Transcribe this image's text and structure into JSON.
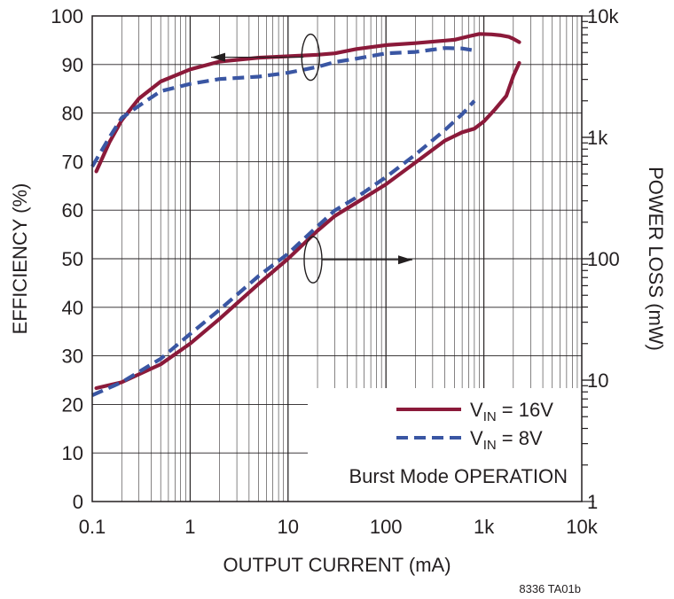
{
  "chart_data": {
    "type": "line",
    "xlabel": "OUTPUT CURRENT (mA)",
    "ylabel_left": "EFFICIENCY (%)",
    "ylabel_right": "POWER LOSS (mW)",
    "x_scale": "log",
    "xlim": [
      0.1,
      10000
    ],
    "ylim_left": [
      0,
      100
    ],
    "ylim_right": [
      1,
      10000
    ],
    "y_right_scale": "log",
    "grid": true,
    "x_tick_labels": [
      {
        "value": 0.1,
        "label": "0.1"
      },
      {
        "value": 1,
        "label": "1"
      },
      {
        "value": 10,
        "label": "10"
      },
      {
        "value": 100,
        "label": "100"
      },
      {
        "value": 1000,
        "label": "1k"
      },
      {
        "value": 10000,
        "label": "10k"
      }
    ],
    "y_left_tick_labels": [
      {
        "value": 0,
        "label": "0"
      },
      {
        "value": 10,
        "label": "10"
      },
      {
        "value": 20,
        "label": "20"
      },
      {
        "value": 30,
        "label": "30"
      },
      {
        "value": 40,
        "label": "40"
      },
      {
        "value": 50,
        "label": "50"
      },
      {
        "value": 60,
        "label": "60"
      },
      {
        "value": 70,
        "label": "70"
      },
      {
        "value": 80,
        "label": "80"
      },
      {
        "value": 90,
        "label": "90"
      },
      {
        "value": 100,
        "label": "100"
      }
    ],
    "y_right_tick_labels": [
      {
        "value": 1,
        "label": "1"
      },
      {
        "value": 10,
        "label": "10"
      },
      {
        "value": 100,
        "label": "100"
      },
      {
        "value": 1000,
        "label": "1k"
      },
      {
        "value": 10000,
        "label": "10k"
      }
    ],
    "legend": {
      "placement": "bottom-right",
      "entries": [
        {
          "series": "vin16",
          "prefix": "V",
          "subscript": "IN",
          "suffix": " = 16V",
          "color": "#8b1a3a",
          "dash": "solid"
        },
        {
          "series": "vin8",
          "prefix": "V",
          "subscript": "IN",
          "suffix": " = 8V",
          "color": "#3a56a3",
          "dash": "dashed"
        }
      ],
      "note": "Burst Mode OPERATION"
    },
    "series": [
      {
        "id": "vin16_eff",
        "color": "#8b1a3a",
        "dash": "solid",
        "axis": "left",
        "points": [
          [
            0.11,
            68
          ],
          [
            0.15,
            74
          ],
          [
            0.2,
            78.5
          ],
          [
            0.3,
            83
          ],
          [
            0.5,
            86.5
          ],
          [
            1,
            89
          ],
          [
            2,
            90.6
          ],
          [
            5,
            91.4
          ],
          [
            10,
            91.7
          ],
          [
            20,
            92
          ],
          [
            30,
            92.3
          ],
          [
            50,
            93.2
          ],
          [
            100,
            94
          ],
          [
            200,
            94.4
          ],
          [
            500,
            95.1
          ],
          [
            700,
            95.8
          ],
          [
            900,
            96.3
          ],
          [
            1200,
            96.2
          ],
          [
            1500,
            96
          ],
          [
            1800,
            95.7
          ],
          [
            2000,
            95.3
          ],
          [
            2300,
            94.6
          ]
        ]
      },
      {
        "id": "vin8_eff",
        "color": "#3a56a3",
        "dash": "dashed",
        "axis": "left",
        "points": [
          [
            0.1,
            69
          ],
          [
            0.15,
            75
          ],
          [
            0.2,
            79
          ],
          [
            0.3,
            81.5
          ],
          [
            0.5,
            84.5
          ],
          [
            1,
            86
          ],
          [
            2,
            87
          ],
          [
            5,
            87.5
          ],
          [
            10,
            88.3
          ],
          [
            20,
            89.5
          ],
          [
            30,
            90.5
          ],
          [
            50,
            91.2
          ],
          [
            100,
            92.3
          ],
          [
            200,
            92.6
          ],
          [
            400,
            93.4
          ],
          [
            600,
            93.3
          ],
          [
            750,
            93
          ]
        ]
      },
      {
        "id": "vin16_loss",
        "color": "#8b1a3a",
        "dash": "solid",
        "axis": "right",
        "points": [
          [
            0.11,
            8.6
          ],
          [
            0.2,
            9.6
          ],
          [
            0.5,
            13.5
          ],
          [
            1,
            20
          ],
          [
            2,
            32
          ],
          [
            5,
            62
          ],
          [
            10,
            100
          ],
          [
            20,
            170
          ],
          [
            30,
            225
          ],
          [
            50,
            290
          ],
          [
            100,
            410
          ],
          [
            200,
            620
          ],
          [
            400,
            940
          ],
          [
            600,
            1100
          ],
          [
            800,
            1180
          ],
          [
            1000,
            1350
          ],
          [
            1300,
            1700
          ],
          [
            1700,
            2200
          ],
          [
            2000,
            3200
          ],
          [
            2300,
            4100
          ]
        ]
      },
      {
        "id": "vin8_loss",
        "color": "#3a56a3",
        "dash": "dashed",
        "axis": "right",
        "points": [
          [
            0.1,
            7.5
          ],
          [
            0.2,
            9.6
          ],
          [
            0.5,
            15
          ],
          [
            1,
            24
          ],
          [
            2,
            38
          ],
          [
            5,
            72
          ],
          [
            10,
            110
          ],
          [
            20,
            185
          ],
          [
            30,
            250
          ],
          [
            50,
            320
          ],
          [
            100,
            470
          ],
          [
            200,
            720
          ],
          [
            400,
            1150
          ],
          [
            600,
            1550
          ],
          [
            800,
            2000
          ]
        ]
      }
    ],
    "annotations": [
      {
        "type": "ellipse-arrow",
        "target_axis": "left",
        "direction": "left",
        "x": 17,
        "y": 91.5
      },
      {
        "type": "ellipse-arrow",
        "target_axis": "right",
        "direction": "right",
        "x": 18,
        "y_right": 98
      }
    ],
    "figure_id": "8336 TA01b"
  }
}
